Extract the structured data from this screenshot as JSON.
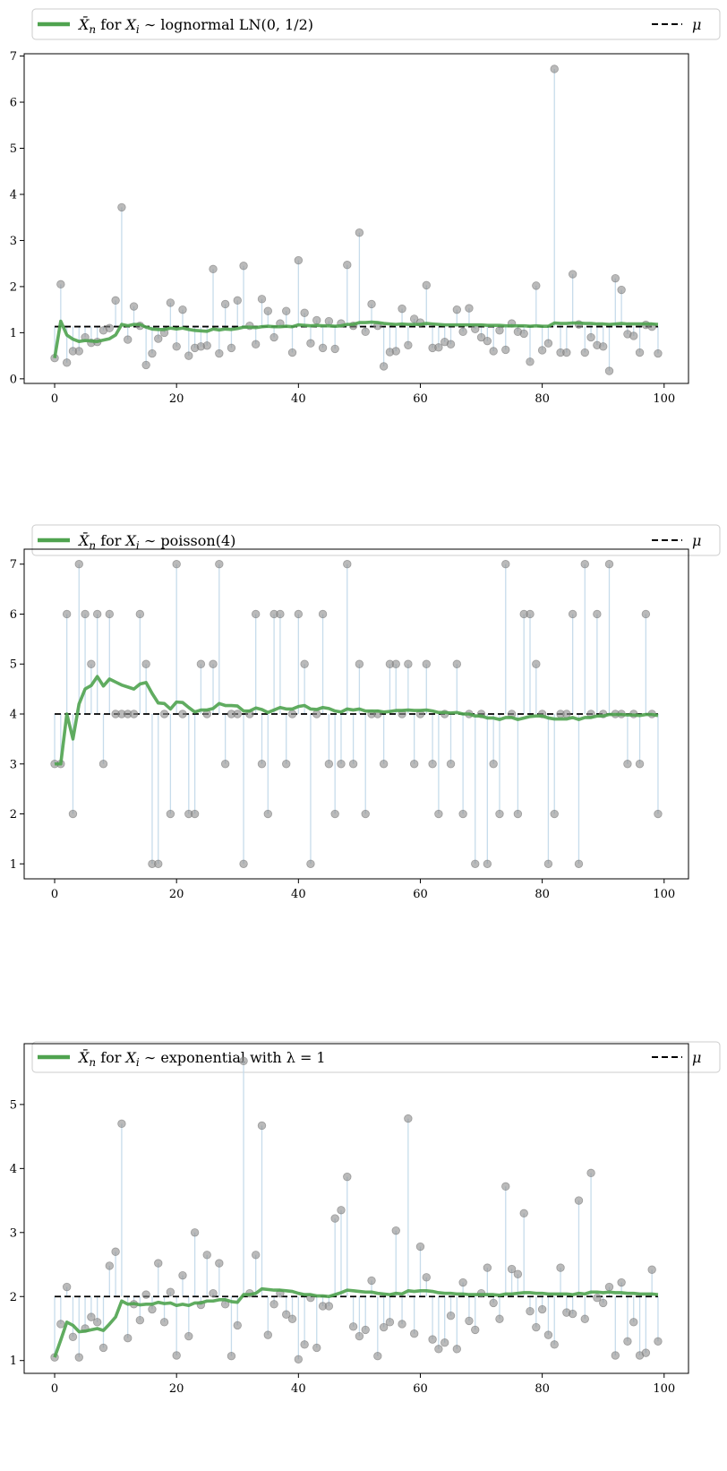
{
  "legend": {
    "mean_symbol": "X̄",
    "mean_sub": "n",
    "for_word": "for",
    "var_symbol": "X",
    "var_sub": "i",
    "tilde": "∼",
    "mu": "μ"
  },
  "colors": {
    "running_mean": "#4fa34f",
    "mu_line": "#000000",
    "stem": "#c7dceb",
    "points": "#8c8c8c"
  },
  "chart_data": [
    {
      "type": "scatter",
      "title": "",
      "distribution": "lognormal LN(0, 1/2)",
      "mu": 1.133,
      "xlim": [
        -5,
        104
      ],
      "ylim": [
        -0.1,
        7.05
      ],
      "xticks": [
        0,
        20,
        40,
        60,
        80,
        100
      ],
      "yticks": [
        0,
        1,
        2,
        3,
        4,
        5,
        6,
        7
      ],
      "legend_placement": "top",
      "samples": [
        0.45,
        2.05,
        0.35,
        0.6,
        0.6,
        0.9,
        0.78,
        0.8,
        1.05,
        1.1,
        1.7,
        3.72,
        0.85,
        1.57,
        1.15,
        0.3,
        0.55,
        0.87,
        1.0,
        1.65,
        0.7,
        1.5,
        0.5,
        0.67,
        0.7,
        0.72,
        2.38,
        0.55,
        1.62,
        0.67,
        1.7,
        2.45,
        1.15,
        0.75,
        1.73,
        1.47,
        0.9,
        1.2,
        1.47,
        0.57,
        2.57,
        1.43,
        0.77,
        1.27,
        0.67,
        1.25,
        0.65,
        1.2,
        2.47,
        1.15,
        3.17,
        1.02,
        1.62,
        1.15,
        0.27,
        0.58,
        0.6,
        1.52,
        0.73,
        1.3,
        1.22,
        2.03,
        0.67,
        0.68,
        0.8,
        0.75,
        1.5,
        1.02,
        1.53,
        1.08,
        0.9,
        0.82,
        0.6,
        1.05,
        0.63,
        1.2,
        1.02,
        0.98,
        0.37,
        2.02,
        0.62,
        0.77,
        6.72,
        0.57,
        0.57,
        2.27,
        1.18,
        0.57,
        0.9,
        0.73,
        0.7,
        0.17,
        2.18,
        1.93,
        0.97,
        0.93,
        0.57,
        1.17,
        1.13,
        0.55
      ],
      "running_mean": [
        0.45,
        1.25,
        0.95,
        0.86,
        0.81,
        0.83,
        0.82,
        0.81,
        0.84,
        0.87,
        0.95,
        1.18,
        1.15,
        1.18,
        1.18,
        1.12,
        1.08,
        1.07,
        1.07,
        1.1,
        1.08,
        1.1,
        1.07,
        1.05,
        1.04,
        1.03,
        1.08,
        1.06,
        1.08,
        1.07,
        1.09,
        1.12,
        1.12,
        1.11,
        1.13,
        1.14,
        1.13,
        1.13,
        1.14,
        1.13,
        1.17,
        1.16,
        1.15,
        1.16,
        1.15,
        1.15,
        1.14,
        1.15,
        1.18,
        1.18,
        1.22,
        1.22,
        1.23,
        1.22,
        1.2,
        1.19,
        1.18,
        1.19,
        1.18,
        1.18,
        1.18,
        1.2,
        1.19,
        1.18,
        1.17,
        1.17,
        1.17,
        1.17,
        1.17,
        1.17,
        1.17,
        1.16,
        1.16,
        1.16,
        1.15,
        1.15,
        1.15,
        1.15,
        1.14,
        1.15,
        1.14,
        1.14,
        1.21,
        1.2,
        1.2,
        1.21,
        1.21,
        1.2,
        1.2,
        1.19,
        1.19,
        1.18,
        1.19,
        1.2,
        1.19,
        1.19,
        1.19,
        1.19,
        1.19,
        1.18
      ]
    },
    {
      "type": "scatter",
      "title": "",
      "distribution": "poisson(4)",
      "mu": 4,
      "xlim": [
        -5,
        104
      ],
      "ylim": [
        0.7,
        7.3
      ],
      "xticks": [
        0,
        20,
        40,
        60,
        80,
        100
      ],
      "yticks": [
        1,
        2,
        3,
        4,
        5,
        6,
        7
      ],
      "legend_placement": "top",
      "samples": [
        3,
        3,
        6,
        2,
        7,
        6,
        5,
        6,
        3,
        6,
        4,
        4,
        4,
        4,
        6,
        5,
        1,
        1,
        4,
        2,
        7,
        4,
        2,
        2,
        5,
        4,
        5,
        7,
        3,
        4,
        4,
        1,
        4,
        6,
        3,
        2,
        6,
        6,
        3,
        4,
        6,
        5,
        1,
        4,
        6,
        3,
        2,
        3,
        7,
        3,
        5,
        2,
        4,
        4,
        3,
        5,
        5,
        4,
        5,
        3,
        4,
        5,
        3,
        2,
        4,
        3,
        5,
        2,
        4,
        1,
        4,
        1,
        3,
        2,
        7,
        4,
        2,
        6,
        6,
        5,
        4,
        1,
        2,
        4,
        4,
        6,
        1,
        7,
        4,
        6,
        4,
        7,
        4,
        4,
        3,
        4,
        3,
        6,
        4,
        2
      ],
      "running_mean": [
        3,
        3,
        4,
        3.5,
        4.2,
        4.5,
        4.57,
        4.75,
        4.56,
        4.7,
        4.64,
        4.58,
        4.54,
        4.5,
        4.6,
        4.63,
        4.41,
        4.22,
        4.21,
        4.1,
        4.24,
        4.23,
        4.13,
        4.04,
        4.08,
        4.08,
        4.11,
        4.21,
        4.17,
        4.17,
        4.16,
        4.06,
        4.06,
        4.12,
        4.09,
        4.03,
        4.08,
        4.13,
        4.1,
        4.1,
        4.15,
        4.17,
        4.1,
        4.09,
        4.13,
        4.11,
        4.06,
        4.04,
        4.1,
        4.08,
        4.1,
        4.06,
        4.06,
        4.06,
        4.04,
        4.05,
        4.07,
        4.07,
        4.08,
        4.07,
        4.07,
        4.08,
        4.06,
        4.03,
        4.03,
        4.02,
        4.03,
        4,
        4,
        3.96,
        3.96,
        3.92,
        3.92,
        3.89,
        3.93,
        3.93,
        3.89,
        3.92,
        3.95,
        3.96,
        3.96,
        3.92,
        3.9,
        3.9,
        3.9,
        3.93,
        3.89,
        3.93,
        3.93,
        3.96,
        3.96,
        3.99,
        3.99,
        3.99,
        3.98,
        3.98,
        3.97,
        3.99,
        3.99,
        3.97
      ]
    },
    {
      "type": "scatter",
      "title": "",
      "distribution": "exponential with λ = 1",
      "mu": 2,
      "xlim": [
        -5,
        104
      ],
      "ylim": [
        0.8,
        5.95
      ],
      "xticks": [
        0,
        20,
        40,
        60,
        80,
        100
      ],
      "yticks": [
        1,
        2,
        3,
        4,
        5
      ],
      "legend_placement": "top",
      "samples": [
        1.05,
        1.57,
        2.15,
        1.37,
        1.05,
        1.5,
        1.68,
        1.6,
        1.2,
        2.48,
        2.7,
        4.7,
        1.35,
        1.88,
        1.63,
        2.03,
        1.8,
        2.52,
        1.6,
        2.07,
        1.08,
        2.33,
        1.38,
        3.0,
        1.87,
        2.65,
        2.05,
        2.52,
        1.88,
        1.07,
        1.55,
        5.68,
        2.05,
        2.65,
        4.67,
        1.4,
        1.88,
        2.05,
        1.72,
        1.65,
        1.02,
        1.25,
        1.98,
        1.2,
        1.85,
        1.85,
        3.22,
        3.35,
        3.87,
        1.53,
        1.38,
        1.48,
        2.25,
        1.07,
        1.52,
        1.6,
        3.03,
        1.57,
        4.78,
        1.42,
        2.78,
        2.3,
        1.33,
        1.18,
        1.28,
        1.7,
        1.18,
        2.22,
        1.62,
        1.48,
        2.05,
        2.45,
        1.9,
        1.65,
        3.72,
        2.43,
        2.35,
        3.3,
        1.77,
        1.52,
        1.8,
        1.4,
        1.25,
        2.45,
        1.75,
        1.73,
        3.5,
        1.65,
        3.93,
        1.98,
        1.9,
        2.15,
        1.08,
        2.22,
        1.3,
        1.6,
        1.08,
        1.12,
        2.42,
        1.3
      ],
      "running_mean": [
        1.05,
        1.32,
        1.6,
        1.55,
        1.45,
        1.46,
        1.48,
        1.5,
        1.47,
        1.57,
        1.68,
        1.93,
        1.88,
        1.89,
        1.87,
        1.88,
        1.88,
        1.91,
        1.89,
        1.9,
        1.86,
        1.88,
        1.86,
        1.9,
        1.9,
        1.93,
        1.93,
        1.95,
        1.95,
        1.92,
        1.91,
        2.03,
        2.03,
        2.05,
        2.12,
        2.11,
        2.1,
        2.1,
        2.09,
        2.08,
        2.05,
        2.03,
        2.03,
        2.01,
        2.01,
        2.0,
        2.03,
        2.06,
        2.1,
        2.09,
        2.08,
        2.07,
        2.07,
        2.05,
        2.04,
        2.03,
        2.05,
        2.04,
        2.09,
        2.08,
        2.09,
        2.09,
        2.08,
        2.06,
        2.05,
        2.05,
        2.04,
        2.04,
        2.03,
        2.03,
        2.03,
        2.03,
        2.03,
        2.02,
        2.04,
        2.04,
        2.05,
        2.06,
        2.06,
        2.05,
        2.05,
        2.04,
        2.04,
        2.04,
        2.04,
        2.03,
        2.05,
        2.04,
        2.07,
        2.07,
        2.06,
        2.07,
        2.06,
        2.06,
        2.05,
        2.05,
        2.04,
        2.04,
        2.04,
        2.03
      ]
    }
  ]
}
